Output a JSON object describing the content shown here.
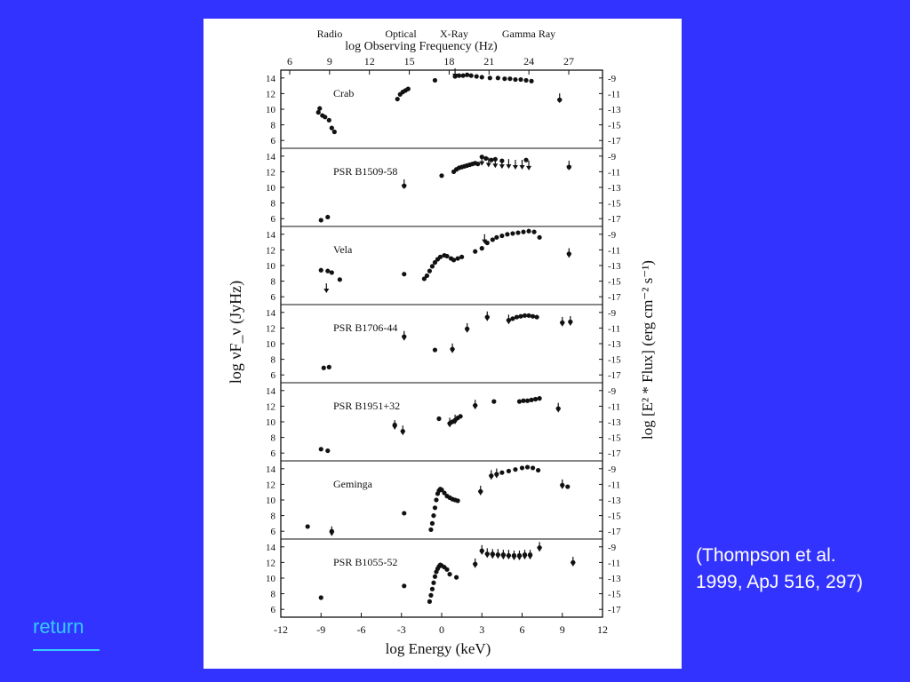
{
  "colors": {
    "background": "#3333ff",
    "panel": "#ffffff",
    "ink": "#111111",
    "link": "#33ccff",
    "citation_text": "#ffffff"
  },
  "citation": {
    "line1": "(Thompson et al.",
    "line2": "1999, ApJ 516, 297)"
  },
  "nav": {
    "return_label": "return"
  },
  "chart_data": {
    "type": "scatter",
    "top_axis": {
      "label": "log Observing Frequency (Hz)",
      "ticks": [
        "6",
        "9",
        "12",
        "15",
        "18",
        "21",
        "24",
        "27"
      ],
      "band_labels": [
        "Radio",
        "Optical",
        "X-Ray",
        "Gamma Ray"
      ]
    },
    "bottom_axis": {
      "label": "log Energy (keV)",
      "ticks": [
        "-12",
        "-9",
        "-6",
        "-3",
        "0",
        "3",
        "6",
        "9",
        "12"
      ],
      "xlim": [
        -12,
        12
      ]
    },
    "left_axis": {
      "label": "log νF_ν (JyHz)",
      "ticks": [
        "14",
        "12",
        "10",
        "8",
        "6"
      ],
      "ylim": [
        5,
        15
      ]
    },
    "right_axis": {
      "label": "log [E² * Flux] (erg cm⁻² s⁻¹)",
      "ticks": [
        "-9",
        "-11",
        "-13",
        "-15",
        "-17"
      ],
      "ylim": [
        -18,
        -8
      ]
    },
    "series": [
      {
        "name": "Crab",
        "points": [
          [
            -9.2,
            9.6
          ],
          [
            -9.1,
            10.1
          ],
          [
            -8.9,
            9.2
          ],
          [
            -8.7,
            9.0
          ],
          [
            -8.4,
            8.6
          ],
          [
            -8.2,
            7.6
          ],
          [
            -8.0,
            7.1
          ],
          [
            -3.3,
            11.3
          ],
          [
            -3.1,
            11.9
          ],
          [
            -2.9,
            12.2
          ],
          [
            -2.7,
            12.4
          ],
          [
            -2.5,
            12.6
          ],
          [
            -0.5,
            13.7
          ],
          [
            1.0,
            14.2
          ],
          [
            1.3,
            14.3
          ],
          [
            1.6,
            14.3
          ],
          [
            1.9,
            14.4
          ],
          [
            2.2,
            14.3
          ],
          [
            2.6,
            14.2
          ],
          [
            3.0,
            14.1
          ],
          [
            3.6,
            14.0
          ],
          [
            4.2,
            14.0
          ],
          [
            4.7,
            13.9
          ],
          [
            5.1,
            13.9
          ],
          [
            5.5,
            13.8
          ],
          [
            5.9,
            13.8
          ],
          [
            6.3,
            13.7
          ],
          [
            6.7,
            13.6
          ],
          [
            8.8,
            11.2
          ]
        ],
        "upper_limits": [
          [
            1.0,
            14.2
          ],
          [
            8.8,
            11.0
          ]
        ]
      },
      {
        "name": "PSR B1509-58",
        "points": [
          [
            -9.0,
            5.8
          ],
          [
            -8.5,
            6.2
          ],
          [
            -2.8,
            10.2
          ],
          [
            0.0,
            11.5
          ],
          [
            0.9,
            12.0
          ],
          [
            1.1,
            12.3
          ],
          [
            1.3,
            12.5
          ],
          [
            1.5,
            12.6
          ],
          [
            1.7,
            12.7
          ],
          [
            1.9,
            12.8
          ],
          [
            2.1,
            12.9
          ],
          [
            2.3,
            13.0
          ],
          [
            2.5,
            13.1
          ],
          [
            2.7,
            13.0
          ],
          [
            3.0,
            13.9
          ],
          [
            3.3,
            13.7
          ],
          [
            3.7,
            13.5
          ],
          [
            4.0,
            13.6
          ],
          [
            4.5,
            13.4
          ],
          [
            6.3,
            13.5
          ],
          [
            9.5,
            12.6
          ]
        ],
        "upper_limits": [
          [
            -2.8,
            10.0
          ],
          [
            3.0,
            13.0
          ],
          [
            3.5,
            12.8
          ],
          [
            4.0,
            12.7
          ],
          [
            4.5,
            12.6
          ],
          [
            5.0,
            12.6
          ],
          [
            5.5,
            12.5
          ],
          [
            6.0,
            12.5
          ],
          [
            6.5,
            12.4
          ],
          [
            9.5,
            12.4
          ]
        ]
      },
      {
        "name": "Vela",
        "points": [
          [
            -9.0,
            9.4
          ],
          [
            -8.5,
            9.3
          ],
          [
            -8.2,
            9.1
          ],
          [
            -7.6,
            8.2
          ],
          [
            -2.8,
            8.9
          ],
          [
            -1.3,
            8.3
          ],
          [
            -1.1,
            8.7
          ],
          [
            -0.9,
            9.3
          ],
          [
            -0.7,
            9.9
          ],
          [
            -0.5,
            10.4
          ],
          [
            -0.3,
            10.8
          ],
          [
            -0.1,
            11.1
          ],
          [
            0.2,
            11.3
          ],
          [
            0.4,
            11.2
          ],
          [
            0.7,
            10.9
          ],
          [
            0.9,
            10.7
          ],
          [
            1.2,
            10.9
          ],
          [
            1.5,
            11.1
          ],
          [
            2.5,
            11.8
          ],
          [
            3.0,
            12.2
          ],
          [
            3.4,
            12.9
          ],
          [
            3.8,
            13.3
          ],
          [
            4.1,
            13.6
          ],
          [
            4.5,
            13.8
          ],
          [
            4.9,
            14.0
          ],
          [
            5.3,
            14.1
          ],
          [
            5.7,
            14.2
          ],
          [
            6.1,
            14.3
          ],
          [
            6.5,
            14.4
          ],
          [
            6.9,
            14.3
          ],
          [
            7.3,
            13.6
          ],
          [
            9.5,
            11.5
          ]
        ],
        "upper_limits": [
          [
            -8.6,
            6.7
          ],
          [
            3.2,
            13.0
          ],
          [
            9.5,
            11.2
          ]
        ]
      },
      {
        "name": "PSR B1706-44",
        "points": [
          [
            -8.8,
            6.9
          ],
          [
            -8.4,
            7.0
          ],
          [
            -2.8,
            10.9
          ],
          [
            -0.5,
            9.2
          ],
          [
            0.8,
            9.3
          ],
          [
            1.9,
            11.9
          ],
          [
            3.4,
            13.4
          ],
          [
            5.0,
            13.0
          ],
          [
            5.3,
            13.2
          ],
          [
            5.6,
            13.4
          ],
          [
            5.9,
            13.5
          ],
          [
            6.2,
            13.6
          ],
          [
            6.5,
            13.6
          ],
          [
            6.8,
            13.5
          ],
          [
            7.1,
            13.4
          ],
          [
            9.0,
            12.7
          ],
          [
            9.6,
            12.8
          ]
        ],
        "upper_limits": [
          [
            -2.8,
            10.6
          ],
          [
            0.8,
            9.0
          ],
          [
            1.9,
            11.6
          ],
          [
            3.4,
            13.1
          ],
          [
            5.0,
            12.7
          ],
          [
            9.0,
            12.4
          ],
          [
            9.6,
            12.5
          ]
        ]
      },
      {
        "name": "PSR B1951+32",
        "points": [
          [
            -9.0,
            6.5
          ],
          [
            -8.5,
            6.3
          ],
          [
            -3.5,
            9.6
          ],
          [
            -2.9,
            8.8
          ],
          [
            -0.2,
            10.4
          ],
          [
            0.6,
            9.8
          ],
          [
            0.8,
            10.0
          ],
          [
            1.0,
            10.2
          ],
          [
            1.2,
            10.5
          ],
          [
            1.4,
            10.7
          ],
          [
            2.5,
            12.1
          ],
          [
            3.9,
            12.6
          ],
          [
            5.8,
            12.6
          ],
          [
            6.1,
            12.7
          ],
          [
            6.4,
            12.7
          ],
          [
            6.7,
            12.8
          ],
          [
            7.0,
            12.9
          ],
          [
            7.3,
            13.0
          ],
          [
            8.7,
            11.7
          ]
        ],
        "upper_limits": [
          [
            -3.5,
            9.2
          ],
          [
            -2.9,
            8.5
          ],
          [
            0.6,
            9.5
          ],
          [
            1.0,
            9.9
          ],
          [
            2.5,
            11.8
          ],
          [
            8.7,
            11.4
          ]
        ]
      },
      {
        "name": "Geminga",
        "points": [
          [
            -10.0,
            6.6
          ],
          [
            -8.2,
            6.0
          ],
          [
            -2.8,
            8.3
          ],
          [
            -0.8,
            6.2
          ],
          [
            -0.7,
            7.0
          ],
          [
            -0.6,
            8.0
          ],
          [
            -0.5,
            9.0
          ],
          [
            -0.4,
            10.0
          ],
          [
            -0.3,
            10.8
          ],
          [
            -0.2,
            11.2
          ],
          [
            -0.1,
            11.4
          ],
          [
            0.0,
            11.3
          ],
          [
            0.2,
            10.9
          ],
          [
            0.4,
            10.5
          ],
          [
            0.6,
            10.3
          ],
          [
            0.8,
            10.1
          ],
          [
            1.0,
            10.0
          ],
          [
            1.2,
            9.9
          ],
          [
            2.9,
            11.1
          ],
          [
            3.7,
            13.1
          ],
          [
            4.1,
            13.3
          ],
          [
            4.5,
            13.5
          ],
          [
            5.0,
            13.7
          ],
          [
            5.5,
            13.9
          ],
          [
            6.0,
            14.1
          ],
          [
            6.4,
            14.2
          ],
          [
            6.8,
            14.1
          ],
          [
            7.2,
            13.8
          ],
          [
            9.0,
            11.9
          ],
          [
            9.4,
            11.7
          ]
        ],
        "upper_limits": [
          [
            -8.2,
            5.6
          ],
          [
            2.9,
            10.8
          ],
          [
            3.7,
            12.8
          ],
          [
            4.1,
            13.0
          ],
          [
            9.0,
            11.6
          ]
        ]
      },
      {
        "name": "PSR B1055-52",
        "points": [
          [
            -9.0,
            7.5
          ],
          [
            -2.8,
            9.0
          ],
          [
            -0.9,
            7.0
          ],
          [
            -0.8,
            7.8
          ],
          [
            -0.7,
            8.6
          ],
          [
            -0.6,
            9.4
          ],
          [
            -0.5,
            10.2
          ],
          [
            -0.4,
            10.8
          ],
          [
            -0.3,
            11.2
          ],
          [
            -0.2,
            11.5
          ],
          [
            -0.1,
            11.7
          ],
          [
            0.0,
            11.6
          ],
          [
            0.2,
            11.4
          ],
          [
            0.4,
            11.1
          ],
          [
            0.6,
            10.5
          ],
          [
            1.1,
            10.1
          ],
          [
            2.5,
            11.8
          ],
          [
            3.0,
            13.5
          ],
          [
            3.4,
            13.1
          ],
          [
            3.8,
            13.1
          ],
          [
            4.2,
            13.0
          ],
          [
            4.6,
            13.0
          ],
          [
            5.0,
            12.9
          ],
          [
            5.4,
            12.9
          ],
          [
            5.8,
            12.9
          ],
          [
            6.2,
            13.0
          ],
          [
            6.6,
            13.0
          ],
          [
            7.3,
            13.9
          ],
          [
            9.8,
            12.0
          ]
        ],
        "upper_limits": [
          [
            2.5,
            11.5
          ],
          [
            3.0,
            13.2
          ],
          [
            3.4,
            12.8
          ],
          [
            3.8,
            12.7
          ],
          [
            4.2,
            12.7
          ],
          [
            4.6,
            12.6
          ],
          [
            5.0,
            12.6
          ],
          [
            5.4,
            12.5
          ],
          [
            5.8,
            12.5
          ],
          [
            6.2,
            12.6
          ],
          [
            6.6,
            12.6
          ],
          [
            7.3,
            13.6
          ],
          [
            9.8,
            11.7
          ]
        ]
      }
    ],
    "grid": false,
    "legend": "none"
  }
}
